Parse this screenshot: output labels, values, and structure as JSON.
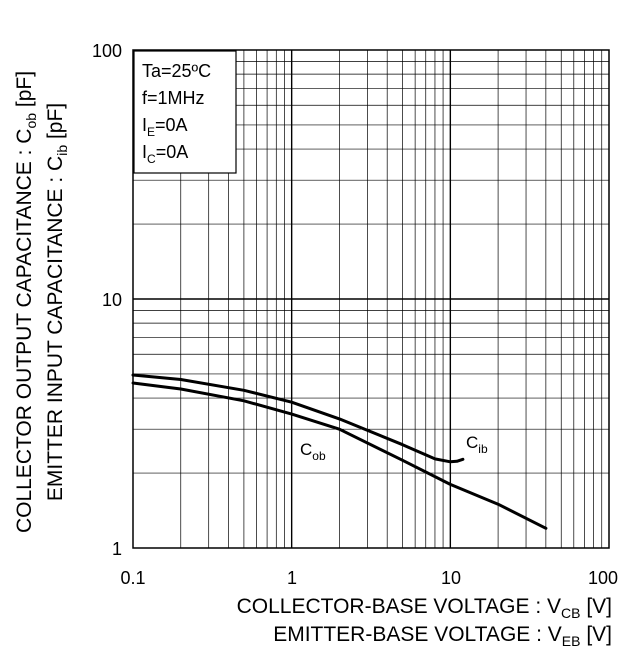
{
  "chart_data": {
    "type": "line",
    "x_scale": "log",
    "y_scale": "log",
    "xlim": [
      0.1,
      100
    ],
    "ylim": [
      1,
      100
    ],
    "grid": true,
    "x_ticks": [
      "0.1",
      "1",
      "10",
      "100"
    ],
    "y_ticks": [
      "1",
      "10",
      "100"
    ],
    "xlabel_line1": {
      "main": "COLLECTOR-BASE VOLTAGE : V",
      "sub": "CB",
      "unit": " [V]"
    },
    "xlabel_line2": {
      "main": "EMITTER-BASE VOLTAGE : V",
      "sub": "EB",
      "unit": " [V]"
    },
    "ylabel_line1": {
      "main": "COLLECTOR OUTPUT CAPACITANCE : C",
      "sub": "ob",
      "unit": " [pF]"
    },
    "ylabel_line2": {
      "main": "EMITTER INPUT CAPACITANCE : C",
      "sub": "ib",
      "unit": " [pF]"
    },
    "conditions": [
      {
        "main": "Ta=25ºC",
        "sub": ""
      },
      {
        "main": "f=1MHz",
        "sub": ""
      },
      {
        "main": "I",
        "sub": "E",
        "rest": "=0A"
      },
      {
        "main": "I",
        "sub": "C",
        "rest": "=0A"
      }
    ],
    "series": [
      {
        "label_main": "C",
        "label_sub": "ib",
        "points": [
          [
            0.1,
            4.95
          ],
          [
            0.2,
            4.75
          ],
          [
            0.5,
            4.3
          ],
          [
            1,
            3.85
          ],
          [
            2,
            3.3
          ],
          [
            5,
            2.6
          ],
          [
            8,
            2.28
          ],
          [
            10,
            2.22
          ],
          [
            11,
            2.23
          ],
          [
            12,
            2.27
          ]
        ]
      },
      {
        "label_main": "C",
        "label_sub": "ob",
        "points": [
          [
            0.1,
            4.6
          ],
          [
            0.2,
            4.35
          ],
          [
            0.5,
            3.9
          ],
          [
            1,
            3.45
          ],
          [
            2,
            3.0
          ],
          [
            5,
            2.25
          ],
          [
            10,
            1.8
          ],
          [
            20,
            1.5
          ],
          [
            40,
            1.2
          ]
        ]
      }
    ]
  }
}
